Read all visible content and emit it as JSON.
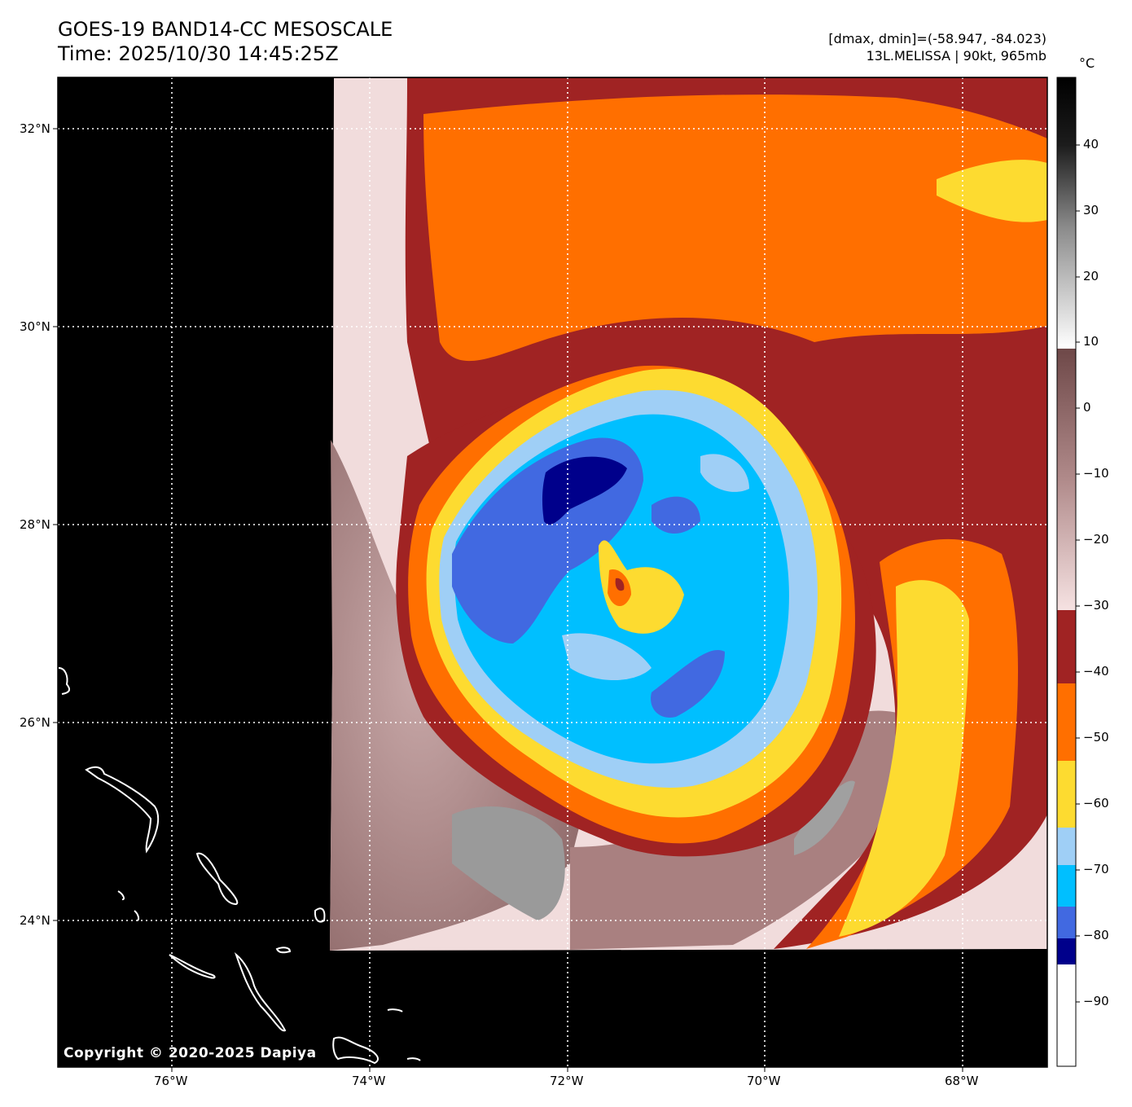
{
  "header": {
    "title_line1": "GOES-19 BAND14-CC MESOSCALE",
    "title_line2": "Time: 2025/10/30 14:45:25Z",
    "info_line1": "[dmax, dmin]=(-58.947, -84.023)",
    "info_line2": "13L.MELISSA | 90kt, 965mb"
  },
  "map": {
    "latitude_labels": [
      "32°N",
      "30°N",
      "28°N",
      "26°N",
      "24°N"
    ],
    "longitude_labels": [
      "76°W",
      "74°W",
      "72°W",
      "70°W",
      "68°W"
    ],
    "copyright": "Copyright © 2020-2025 Dapiya",
    "background_color": "#000000",
    "gridline_color": "#ffffff"
  },
  "colorbar": {
    "unit": "°C",
    "tick_labels": [
      "40",
      "30",
      "20",
      "10",
      "0",
      "−10",
      "−20",
      "−30",
      "−40",
      "−50",
      "−60",
      "−70",
      "−80",
      "−90"
    ],
    "band_colors": {
      "cold_white": "#ffffff",
      "navy": "#00008b",
      "royal_blue": "#4169e1",
      "deep_sky_blue": "#00bfff",
      "light_sky_blue": "#9fcff6",
      "gold": "#fddb30",
      "orange": "#ff6f00",
      "dark_red": "#a02323",
      "pink_gray": "#f3dcdc",
      "brown_gray": "#8b5c5c",
      "warm_black": "#000000"
    }
  }
}
